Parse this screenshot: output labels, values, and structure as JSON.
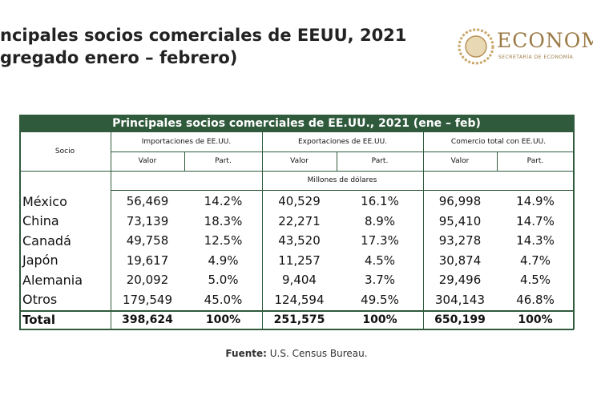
{
  "header": {
    "title_line1": "ncipales socios comerciales de EEUU, 2021",
    "title_line2": "gregado enero – febrero)",
    "logo_text": "ECONOM",
    "logo_subtitle": "SECRETARÍA DE ECONOMÍA"
  },
  "table": {
    "title": "Principales socios comerciales de EE.UU., 2021 (ene – feb)",
    "socio": "Socio",
    "groups": [
      "Importaciones de EE.UU.",
      "Exportaciones de EE.UU.",
      "Comercio total con EE.UU."
    ],
    "subheaders": [
      "Valor",
      "Part.",
      "Valor",
      "Part.",
      "Valor",
      "Part."
    ],
    "unit": "Millones de dólares",
    "rows": [
      [
        "México",
        "56,469",
        "14.2%",
        "40,529",
        "16.1%",
        "96,998",
        "14.9%"
      ],
      [
        "China",
        "73,139",
        "18.3%",
        "22,271",
        "8.9%",
        "95,410",
        "14.7%"
      ],
      [
        "Canadá",
        "49,758",
        "12.5%",
        "43,520",
        "17.3%",
        "93,278",
        "14.3%"
      ],
      [
        "Japón",
        "19,617",
        "4.9%",
        "11,257",
        "4.5%",
        "30,874",
        "4.7%"
      ],
      [
        "Alemania",
        "20,092",
        "5.0%",
        "9,404",
        "3.7%",
        "29,496",
        "4.5%"
      ],
      [
        "Otros",
        "179,549",
        "45.0%",
        "124,594",
        "49.5%",
        "304,143",
        "46.8%"
      ]
    ],
    "total": [
      "Total",
      "398,624",
      "100%",
      "251,575",
      "100%",
      "650,199",
      "100%"
    ]
  },
  "footer": {
    "label": "Fuente:",
    "text": "U.S. Census Bureau."
  }
}
